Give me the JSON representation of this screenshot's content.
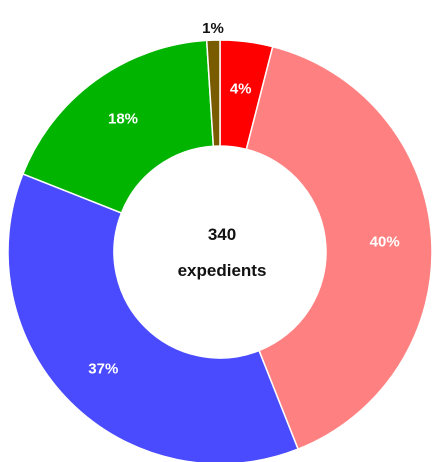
{
  "chart_data": {
    "type": "pie",
    "title": "",
    "donut": true,
    "center_text": [
      "340",
      "expedients"
    ],
    "slices": [
      {
        "value": 4,
        "label": "4%",
        "color": "#ff0000",
        "label_color": "#ffffff"
      },
      {
        "value": 40,
        "label": "40%",
        "color": "#ff8080",
        "label_color": "#ffffff"
      },
      {
        "value": 37,
        "label": "37%",
        "color": "#4a4aff",
        "label_color": "#ffffff"
      },
      {
        "value": 18,
        "label": "18%",
        "color": "#00b400",
        "label_color": "#ffffff"
      },
      {
        "value": 1,
        "label": "1%",
        "color": "#7a5c00",
        "label_color": "#111111"
      }
    ]
  }
}
